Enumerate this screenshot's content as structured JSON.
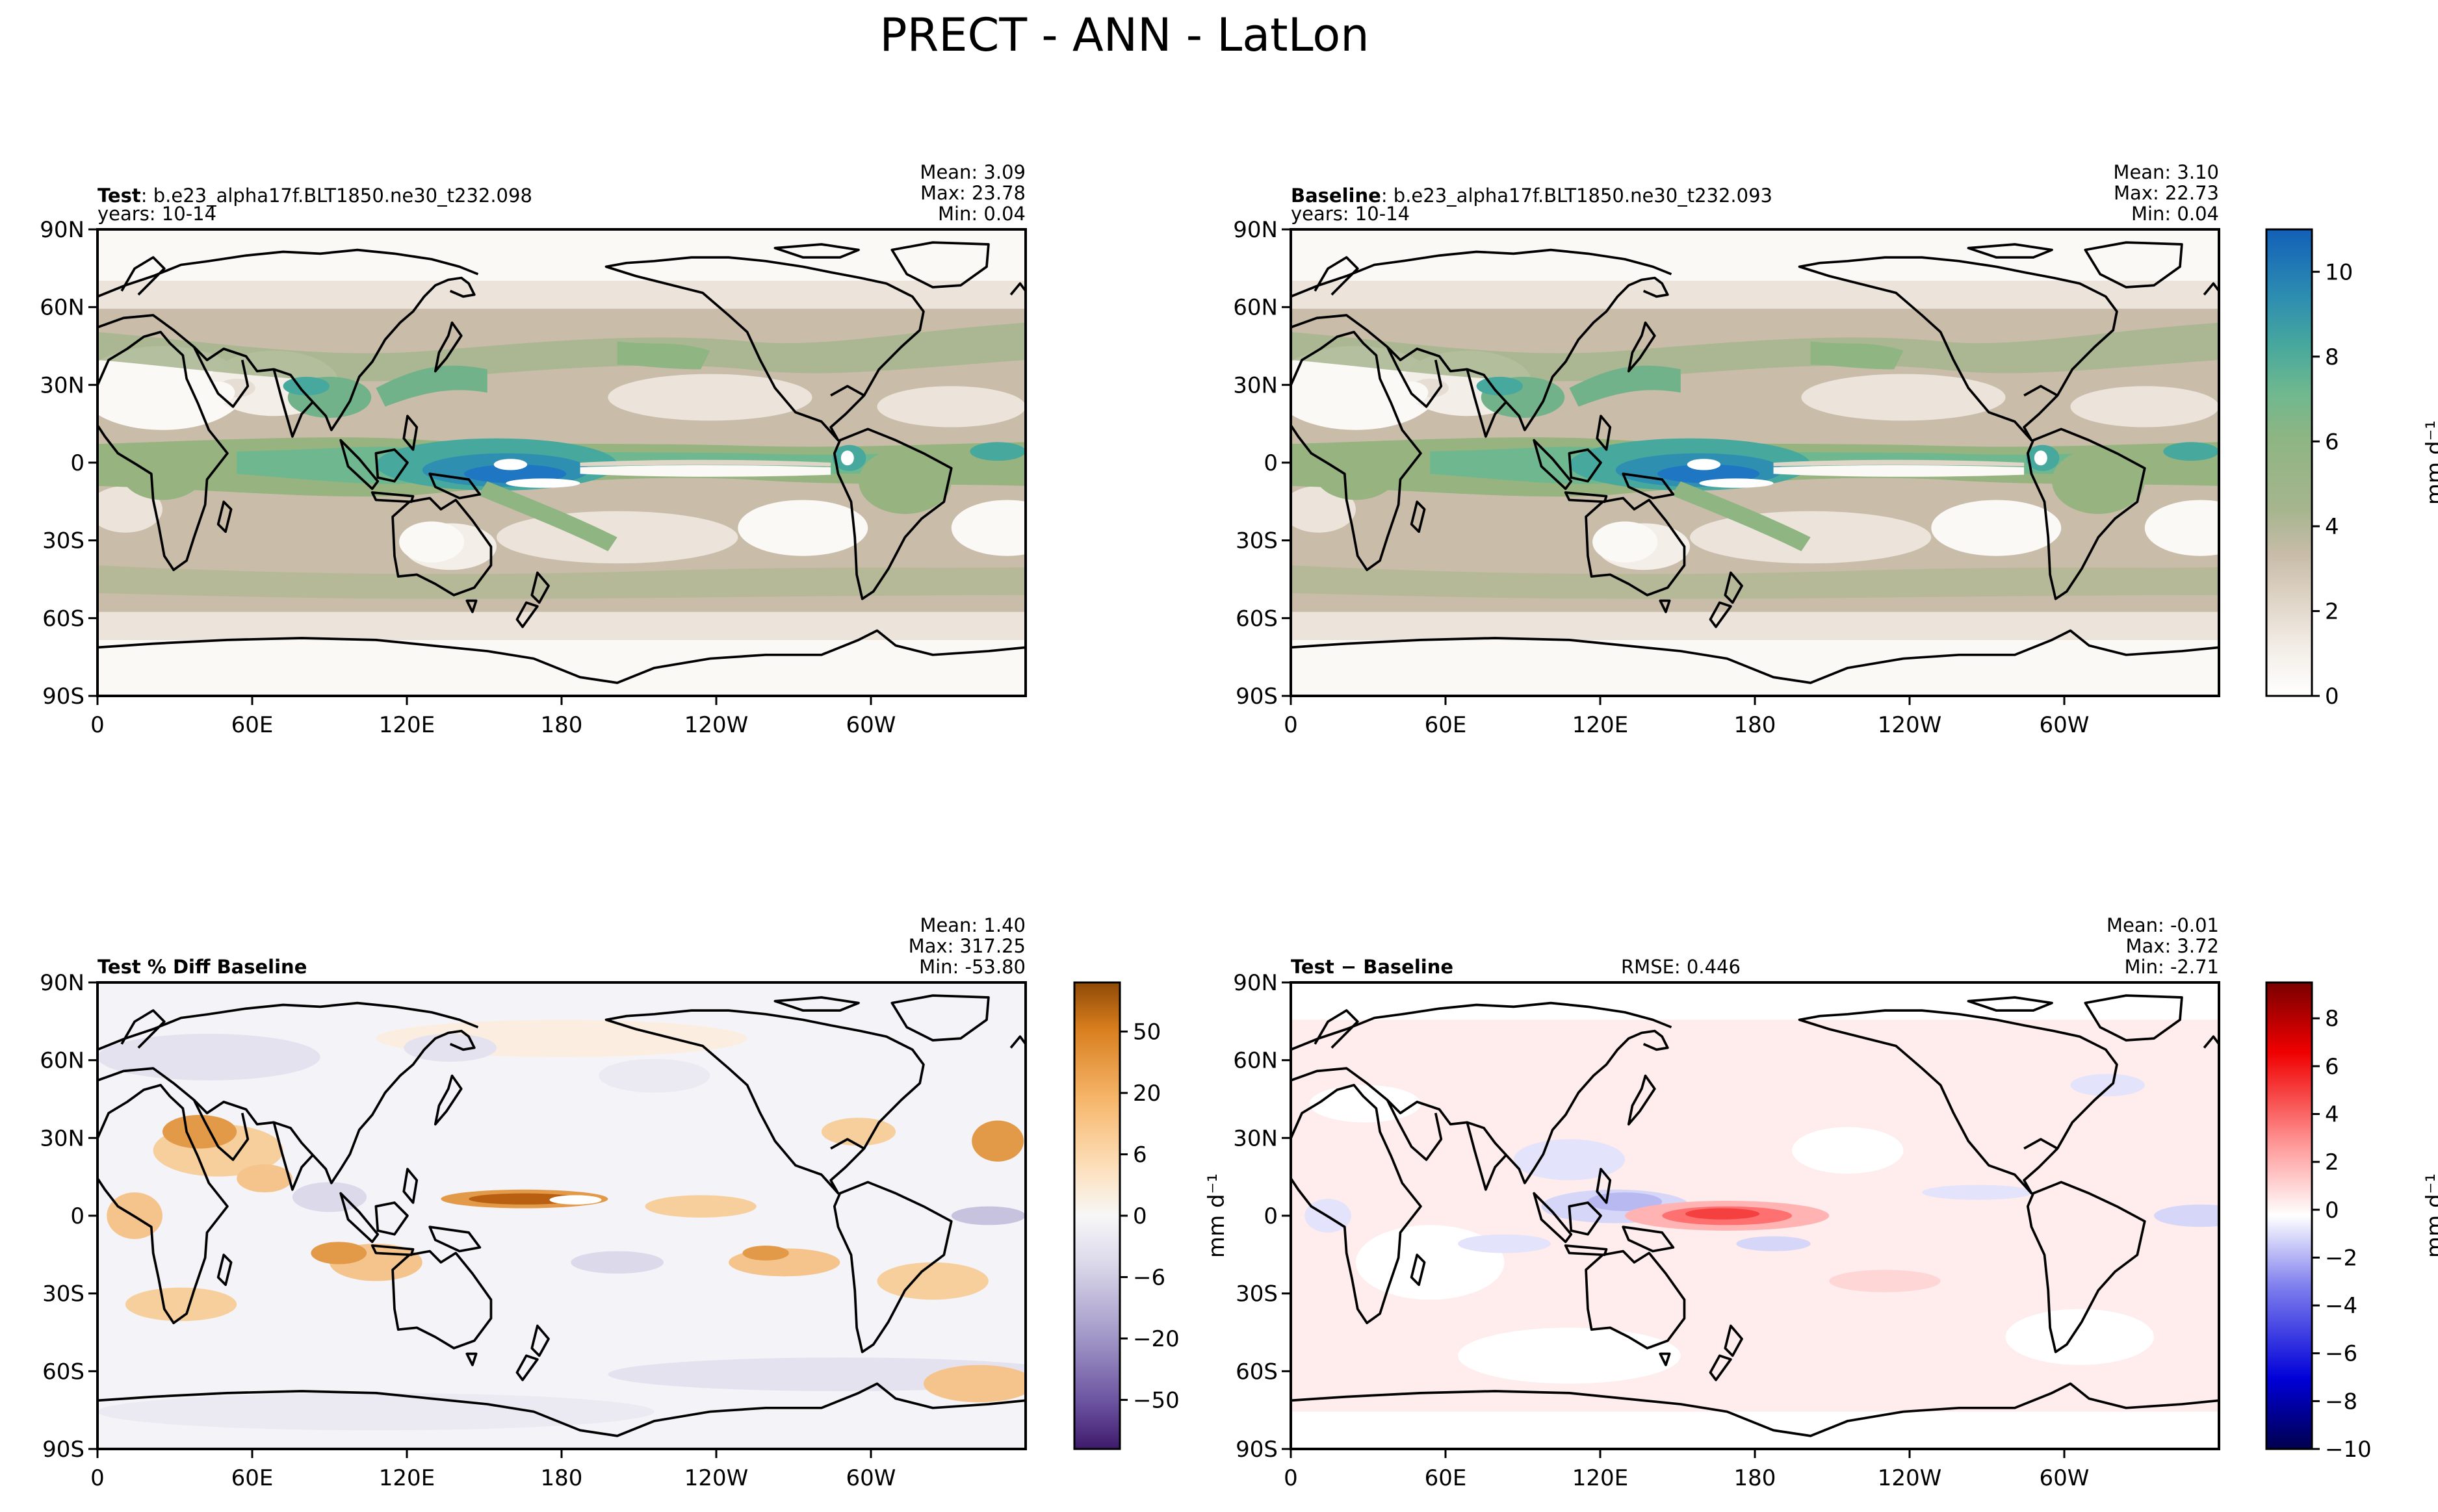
{
  "figure": {
    "title": "PRECT - ANN - LatLon"
  },
  "chart_data": [
    {
      "type": "heatmap",
      "panel": "test",
      "label_bold": "Test",
      "label_rest": ": b.e23_alpha17f.BLT1850.ne30_t232.098",
      "years": "years: 10-14",
      "stats": [
        "Mean:  3.09",
        "Max: 23.78",
        "Min:  0.04"
      ],
      "xticks": [
        "0",
        "60E",
        "120E",
        "180",
        "120W",
        "60W"
      ],
      "yticks": [
        "90N",
        "60N",
        "30N",
        "0",
        "30S",
        "60S",
        "90S"
      ],
      "xlim": [
        0,
        360
      ],
      "ylim": [
        -90,
        90
      ],
      "range": [
        0,
        11
      ],
      "colormap": "precip"
    },
    {
      "type": "heatmap",
      "panel": "baseline",
      "label_bold": "Baseline",
      "label_rest": ": b.e23_alpha17f.BLT1850.ne30_t232.093",
      "years": "years: 10-14",
      "stats": [
        "Mean:  3.10",
        "Max: 22.73",
        "Min:  0.04"
      ],
      "xticks": [
        "0",
        "60E",
        "120E",
        "180",
        "120W",
        "60W"
      ],
      "yticks": [
        "90N",
        "60N",
        "30N",
        "0",
        "30S",
        "60S",
        "90S"
      ],
      "xlim": [
        0,
        360
      ],
      "ylim": [
        -90,
        90
      ],
      "range": [
        0,
        11
      ],
      "colormap": "precip",
      "colorbar": {
        "ticks": [
          "0",
          "2",
          "4",
          "6",
          "8",
          "10"
        ],
        "tick_values": [
          0,
          2,
          4,
          6,
          8,
          10
        ],
        "label": "mm d⁻¹"
      }
    },
    {
      "type": "heatmap",
      "panel": "pctdiff",
      "label_bold": "Test % Diff Baseline",
      "stats": [
        "Mean:  1.40",
        "Max: 317.25",
        "Min: -53.80"
      ],
      "xticks": [
        "0",
        "60E",
        "120E",
        "180",
        "120W",
        "60W"
      ],
      "yticks": [
        "90N",
        "60N",
        "30N",
        "0",
        "30S",
        "60S",
        "90S"
      ],
      "xlim": [
        0,
        360
      ],
      "ylim": [
        -90,
        90
      ],
      "colormap": "purple-orange",
      "colorbar": {
        "ticks": [
          "50",
          "20",
          "6",
          "0",
          "−6",
          "−20",
          "−50"
        ],
        "label": "mm d⁻¹"
      }
    },
    {
      "type": "heatmap",
      "panel": "diff",
      "label_bold": "Test − Baseline",
      "rmse": "RMSE: 0.446",
      "stats": [
        "Mean: -0.01",
        "Max:  3.72",
        "Min: -2.71"
      ],
      "xticks": [
        "0",
        "60E",
        "120E",
        "180",
        "120W",
        "60W"
      ],
      "yticks": [
        "90N",
        "60N",
        "30N",
        "0",
        "30S",
        "60S",
        "90S"
      ],
      "xlim": [
        0,
        360
      ],
      "ylim": [
        -90,
        90
      ],
      "range": [
        -10,
        9.5
      ],
      "colormap": "blue-red",
      "colorbar": {
        "ticks": [
          "8",
          "6",
          "4",
          "2",
          "0",
          "−2",
          "−4",
          "−6",
          "−8",
          "−10"
        ],
        "tick_values": [
          8,
          6,
          4,
          2,
          0,
          -2,
          -4,
          -6,
          -8,
          -10
        ],
        "label": "mm d⁻¹"
      }
    }
  ]
}
